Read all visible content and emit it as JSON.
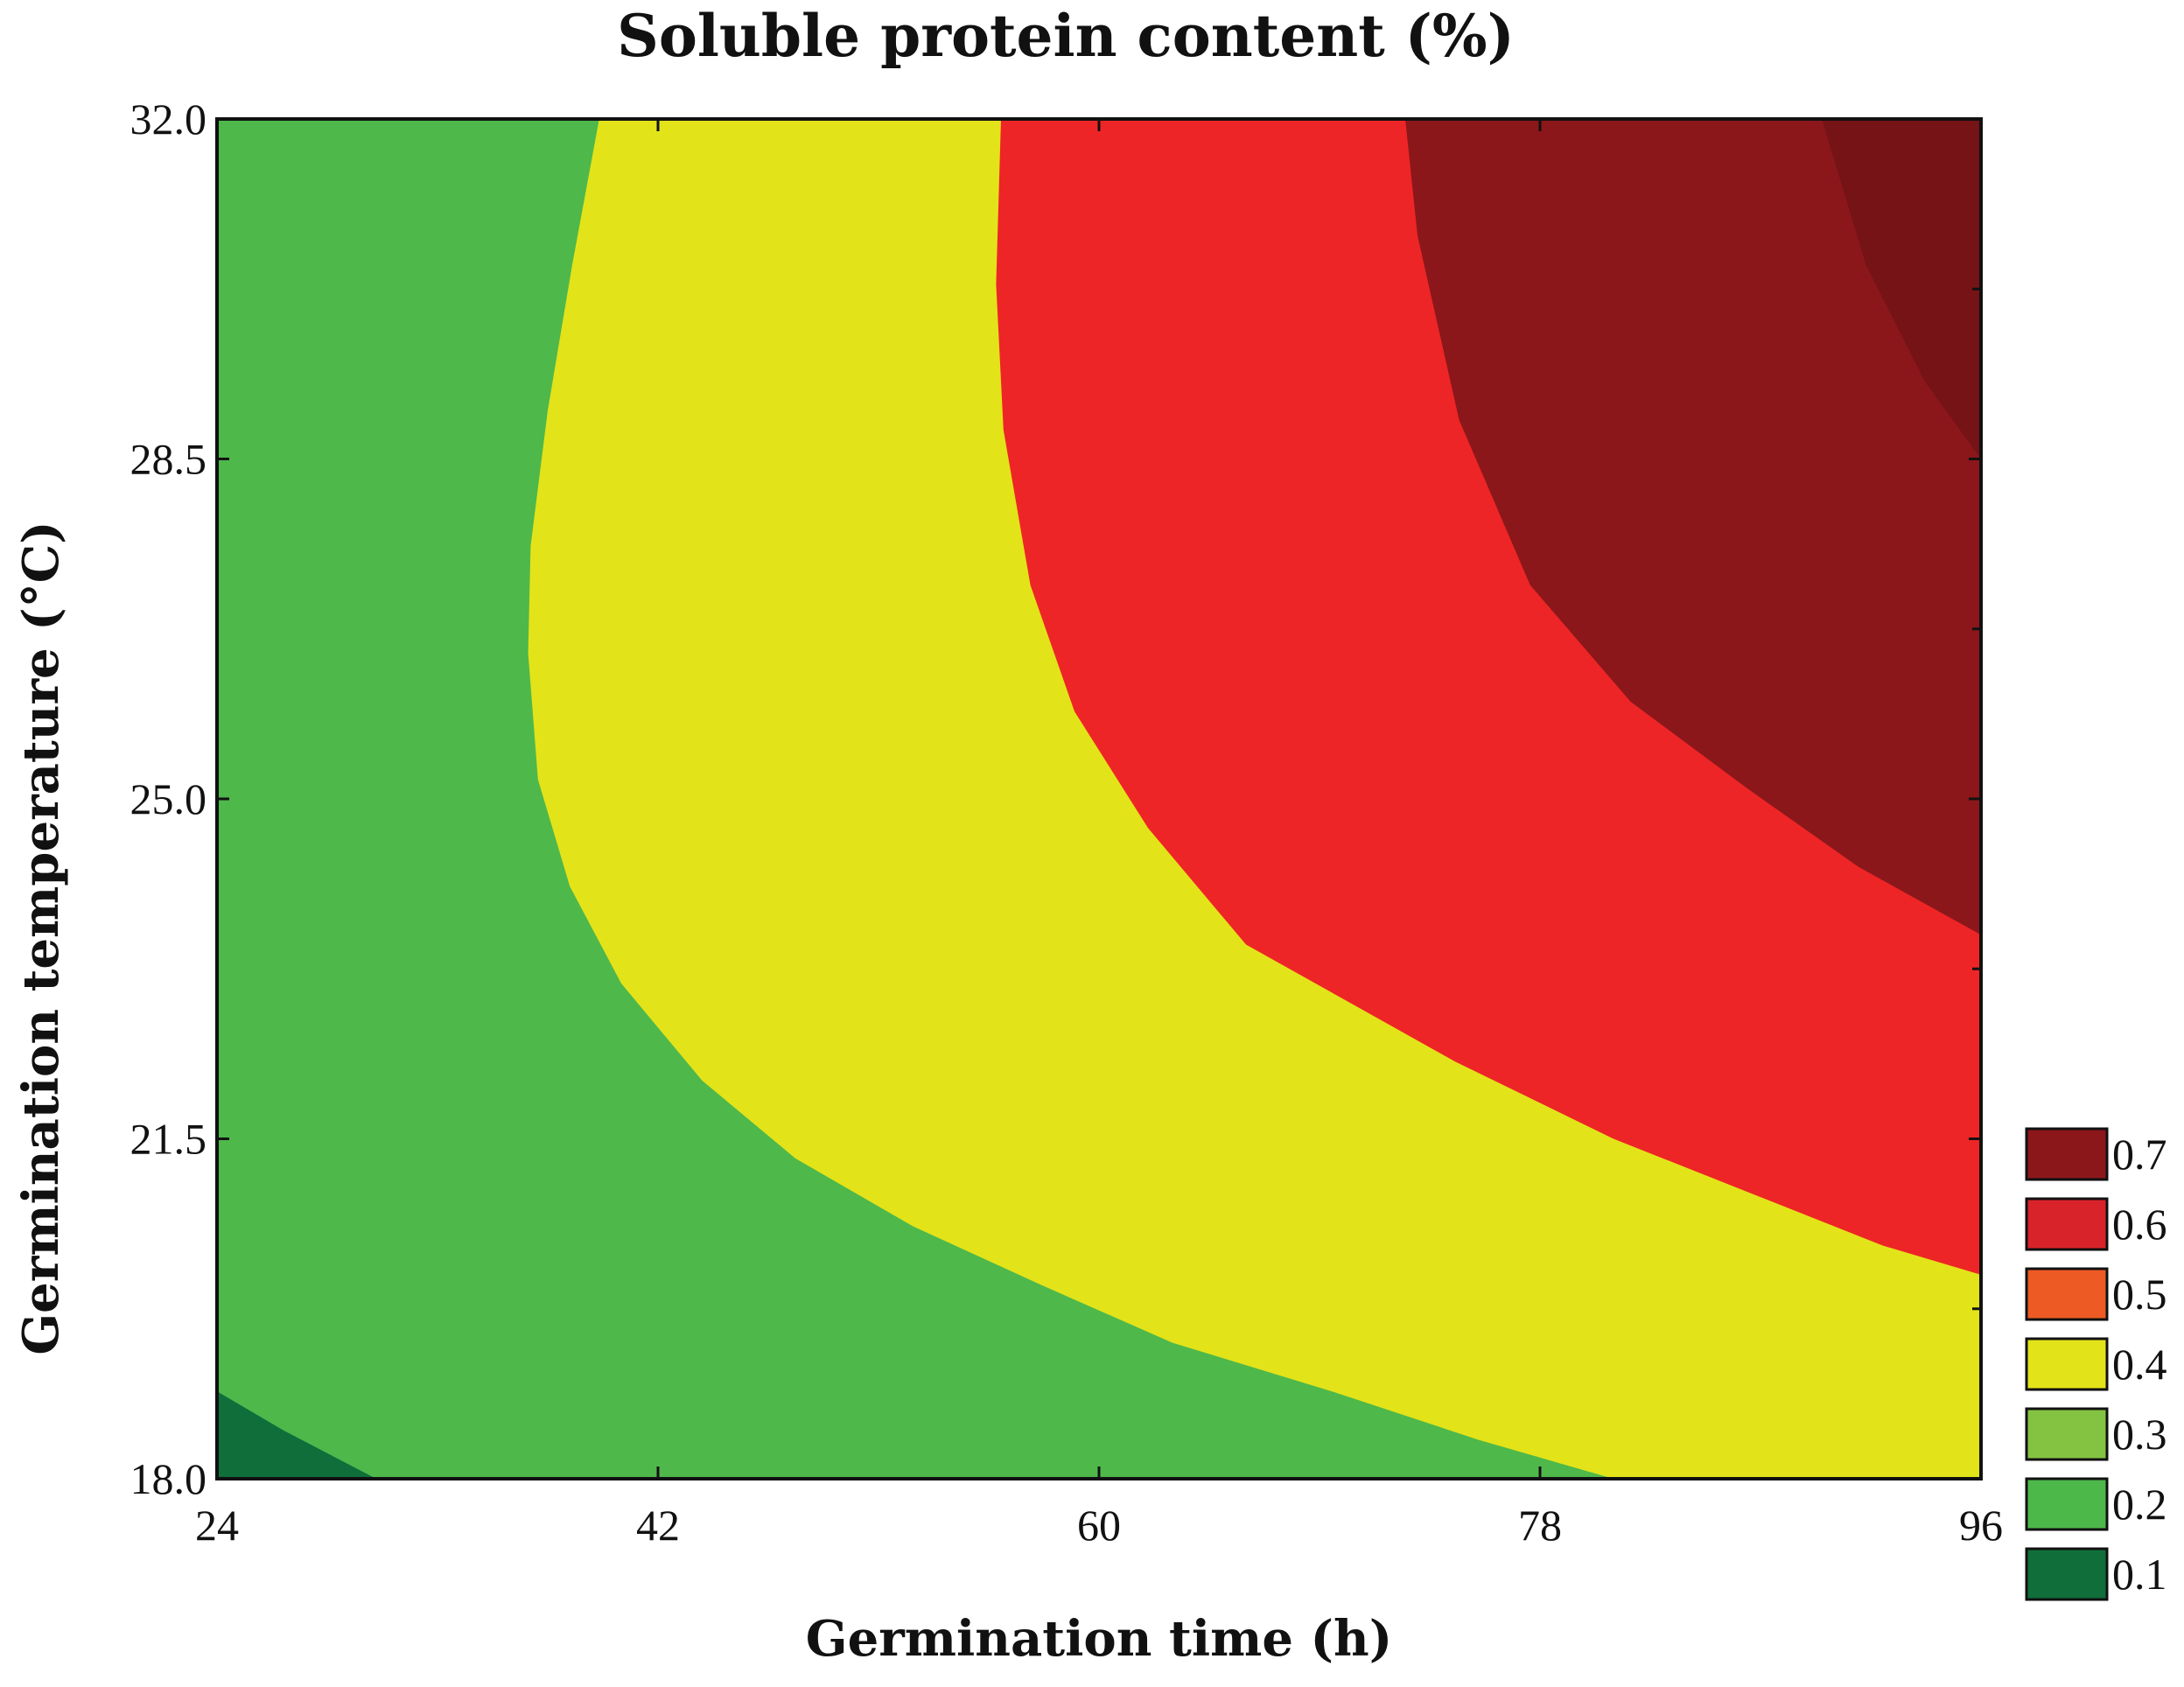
{
  "chart_data": {
    "type": "contour",
    "title": "Soluble protein content (%)",
    "xlabel": "Germination time (h)",
    "ylabel": "Germination temperature (°C)",
    "xlim": [
      24,
      96
    ],
    "ylim": [
      18,
      32
    ],
    "x_ticks": [
      "24",
      "42",
      "60",
      "78",
      "96"
    ],
    "y_ticks": [
      "18.0",
      "21.5",
      "25.0",
      "28.5",
      "32.0"
    ],
    "legend_position": "bottom-right",
    "legend": [
      {
        "label": "0.7",
        "color": "#8b171b"
      },
      {
        "label": "0.6",
        "color": "#d9232a"
      },
      {
        "label": "0.5",
        "color": "#ee5a24"
      },
      {
        "label": "0.4",
        "color": "#e3e319"
      },
      {
        "label": "0.3",
        "color": "#84c341"
      },
      {
        "label": "0.2",
        "color": "#4db84a"
      },
      {
        "label": "0.1",
        "color": "#0f6e3a"
      }
    ],
    "regions": [
      {
        "level": "0.2",
        "color": "#4eb84a",
        "points": [
          [
            24,
            18
          ],
          [
            24,
            32
          ],
          [
            96,
            32
          ],
          [
            96,
            18
          ]
        ]
      },
      {
        "level": "0.4",
        "color": "#e3e319",
        "points": [
          [
            39.6,
            32
          ],
          [
            38.5,
            30.5
          ],
          [
            37.5,
            29
          ],
          [
            36.8,
            27.6
          ],
          [
            36.7,
            26.5
          ],
          [
            37.1,
            25.2
          ],
          [
            38.4,
            24.1
          ],
          [
            40.5,
            23.1
          ],
          [
            43.8,
            22.1
          ],
          [
            47.6,
            21.3
          ],
          [
            52.4,
            20.6
          ],
          [
            57.6,
            20
          ],
          [
            63,
            19.4
          ],
          [
            69.5,
            18.9
          ],
          [
            75.5,
            18.4
          ],
          [
            81,
            18
          ],
          [
            96,
            18
          ],
          [
            96,
            32
          ]
        ]
      },
      {
        "level": "0.6",
        "color": "#ee2526",
        "points": [
          [
            56,
            32
          ],
          [
            55.8,
            30.3
          ],
          [
            56.1,
            28.8
          ],
          [
            57.2,
            27.2
          ],
          [
            59,
            25.9
          ],
          [
            62,
            24.7
          ],
          [
            66,
            23.5
          ],
          [
            74.5,
            22.3
          ],
          [
            81,
            21.5
          ],
          [
            87,
            20.9
          ],
          [
            92,
            20.4
          ],
          [
            96,
            20.1
          ],
          [
            96,
            32
          ]
        ]
      },
      {
        "level": "0.7",
        "color": "#8b171b",
        "points": [
          [
            72.5,
            32
          ],
          [
            73,
            30.8
          ],
          [
            74.7,
            28.9
          ],
          [
            77.6,
            27.2
          ],
          [
            81.7,
            26
          ],
          [
            86.5,
            25.1
          ],
          [
            91,
            24.3
          ],
          [
            96,
            23.6
          ],
          [
            96,
            32
          ]
        ]
      },
      {
        "level": "0.7+",
        "color": "#751316",
        "points": [
          [
            89.5,
            32
          ],
          [
            91.3,
            30.5
          ],
          [
            93.7,
            29.3
          ],
          [
            96,
            28.5
          ],
          [
            96,
            32
          ]
        ]
      },
      {
        "level": "0.1",
        "color": "#0f6e3a",
        "points": [
          [
            24,
            18
          ],
          [
            24,
            18.9
          ],
          [
            26.7,
            18.5
          ],
          [
            30.5,
            18
          ]
        ]
      }
    ]
  }
}
